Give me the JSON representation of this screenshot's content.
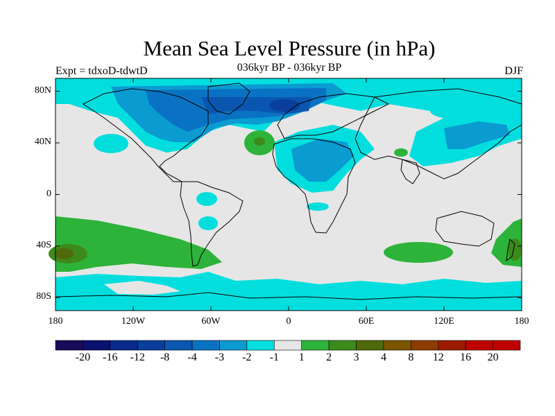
{
  "title": "Mean Sea Level Pressure (in hPa)",
  "subtitle": "036kyr BP - 036kyr BP",
  "experiment": "Expt = tdxoD-tdwtD",
  "season": "DJF",
  "lat_ticks": [
    {
      "label": "80N",
      "lat": 80
    },
    {
      "label": "40N",
      "lat": 40
    },
    {
      "label": "0",
      "lat": 0
    },
    {
      "label": "40S",
      "lat": -40
    },
    {
      "label": "80S",
      "lat": -80
    }
  ],
  "lon_ticks": [
    {
      "label": "180",
      "lon": -180
    },
    {
      "label": "120W",
      "lon": -120
    },
    {
      "label": "60W",
      "lon": -60
    },
    {
      "label": "0",
      "lon": 0
    },
    {
      "label": "60E",
      "lon": 60
    },
    {
      "label": "120E",
      "lon": 120
    },
    {
      "label": "180",
      "lon": 180
    }
  ],
  "colorbar": {
    "colors": [
      "#1a0a5a",
      "#0a106e",
      "#0a2a8a",
      "#0a3e9c",
      "#0b57b0",
      "#0a72c2",
      "#0a9bd0",
      "#02dede",
      "#e6e6e6",
      "#2db33a",
      "#3d8a1c",
      "#4f6a0b",
      "#7b5500",
      "#8c3c00",
      "#9c1a00",
      "#c00000"
    ],
    "labels": [
      "-20",
      "-16",
      "-12",
      "-8",
      "-4",
      "-3",
      "-2",
      "-1",
      "1",
      "2",
      "3",
      "4",
      "8",
      "12",
      "16",
      "20"
    ]
  },
  "map_colors": {
    "ocean": "#e6e6e6",
    "light_cyan": "#02dede",
    "medium_blue": "#0a9bd0",
    "dark_blue": "#0a72c2",
    "darker_blue": "#0b57b0",
    "green": "#2db33a",
    "dark_green": "#3d8a1c",
    "olive": "#7b5500"
  }
}
